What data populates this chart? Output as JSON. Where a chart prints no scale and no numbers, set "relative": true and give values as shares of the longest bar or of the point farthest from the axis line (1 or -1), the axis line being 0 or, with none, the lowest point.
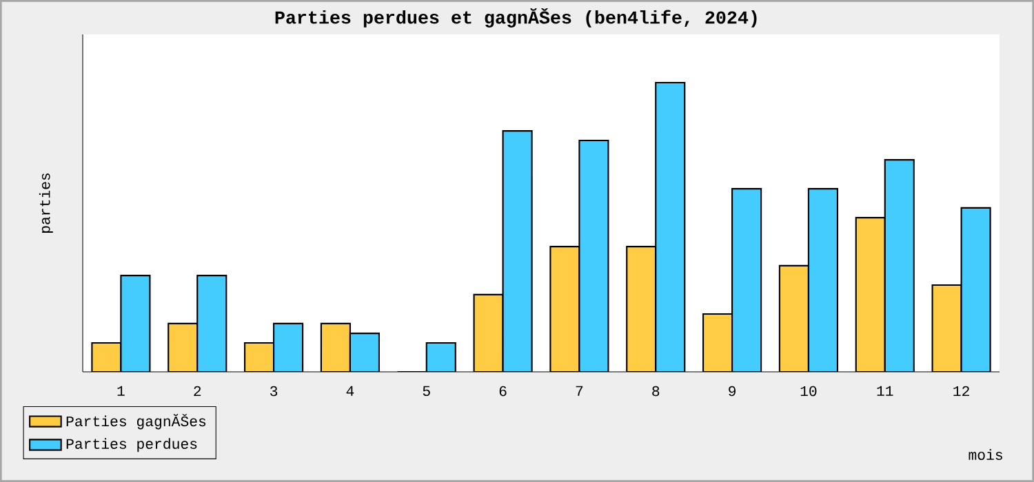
{
  "chart_data": {
    "type": "bar",
    "title": "Parties perdues et gagnĂŠes (ben4life, 2024)",
    "xlabel": "mois",
    "ylabel": "parties",
    "categories": [
      "1",
      "2",
      "3",
      "4",
      "5",
      "6",
      "7",
      "8",
      "9",
      "10",
      "11",
      "12"
    ],
    "relative": true,
    "legend": "bottom left",
    "series": [
      {
        "name": "Parties gagnĂŠes",
        "color": "#ffcc44",
        "values": [
          0.1,
          0.167,
          0.1,
          0.167,
          0,
          0.267,
          0.433,
          0.433,
          0.2,
          0.367,
          0.533,
          0.3
        ]
      },
      {
        "name": "Parties perdues",
        "color": "#44ccff",
        "values": [
          0.333,
          0.333,
          0.167,
          0.133,
          0.1,
          0.833,
          0.8,
          1,
          0.633,
          0.633,
          0.733,
          0.567
        ]
      }
    ]
  }
}
